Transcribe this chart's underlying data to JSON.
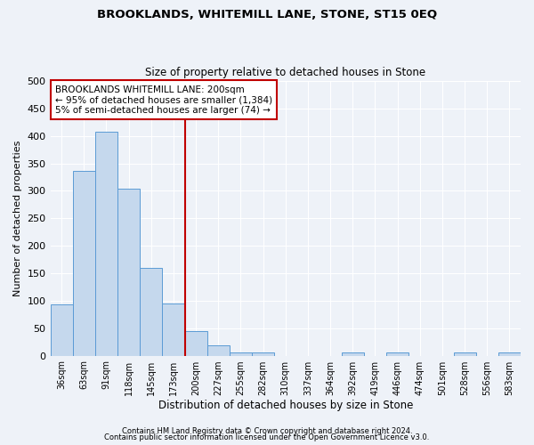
{
  "title": "BROOKLANDS, WHITEMILL LANE, STONE, ST15 0EQ",
  "subtitle": "Size of property relative to detached houses in Stone",
  "xlabel": "Distribution of detached houses by size in Stone",
  "ylabel": "Number of detached properties",
  "bar_color": "#c5d8ed",
  "bar_edge_color": "#5b9bd5",
  "background_color": "#eef2f8",
  "grid_color": "#ffffff",
  "bin_labels": [
    "36sqm",
    "63sqm",
    "91sqm",
    "118sqm",
    "145sqm",
    "173sqm",
    "200sqm",
    "227sqm",
    "255sqm",
    "282sqm",
    "310sqm",
    "337sqm",
    "364sqm",
    "392sqm",
    "419sqm",
    "446sqm",
    "474sqm",
    "501sqm",
    "528sqm",
    "556sqm",
    "583sqm"
  ],
  "bar_heights": [
    93,
    336,
    407,
    304,
    160,
    95,
    45,
    18,
    5,
    5,
    0,
    0,
    0,
    5,
    0,
    5,
    0,
    0,
    5,
    0,
    5
  ],
  "ylim": [
    0,
    500
  ],
  "yticks": [
    0,
    50,
    100,
    150,
    200,
    250,
    300,
    350,
    400,
    450,
    500
  ],
  "vline_color": "#c00000",
  "annotation_title": "BROOKLANDS WHITEMILL LANE: 200sqm",
  "annotation_line1": "← 95% of detached houses are smaller (1,384)",
  "annotation_line2": "5% of semi-detached houses are larger (74) →",
  "annotation_box_color": "#ffffff",
  "annotation_edge_color": "#c00000",
  "footnote1": "Contains HM Land Registry data © Crown copyright and database right 2024.",
  "footnote2": "Contains public sector information licensed under the Open Government Licence v3.0."
}
